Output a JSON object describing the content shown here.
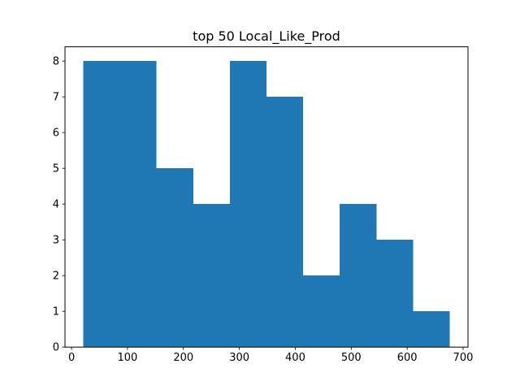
{
  "chart_data": {
    "type": "bar",
    "subtype": "histogram",
    "title": "top 50 Local_Like_Prod",
    "xlabel": "",
    "ylabel": "",
    "bins": [
      {
        "start": 21.0,
        "end": 86.5,
        "count": 8
      },
      {
        "start": 86.5,
        "end": 152.0,
        "count": 8
      },
      {
        "start": 152.0,
        "end": 217.5,
        "count": 5
      },
      {
        "start": 217.5,
        "end": 283.0,
        "count": 4
      },
      {
        "start": 283.0,
        "end": 348.5,
        "count": 8
      },
      {
        "start": 348.5,
        "end": 414.0,
        "count": 7
      },
      {
        "start": 414.0,
        "end": 479.5,
        "count": 2
      },
      {
        "start": 479.5,
        "end": 545.0,
        "count": 4
      },
      {
        "start": 545.0,
        "end": 610.5,
        "count": 3
      },
      {
        "start": 610.5,
        "end": 676.0,
        "count": 1
      }
    ],
    "xlim": [
      -11.75,
      708.75
    ],
    "ylim": [
      0,
      8.4
    ],
    "xticks": [
      0,
      100,
      200,
      300,
      400,
      500,
      600,
      700
    ],
    "yticks": [
      0,
      1,
      2,
      3,
      4,
      5,
      6,
      7,
      8
    ],
    "grid": false,
    "colors": {
      "bar": "#1f77b4",
      "axes": "#000000",
      "background": "#ffffff"
    }
  }
}
